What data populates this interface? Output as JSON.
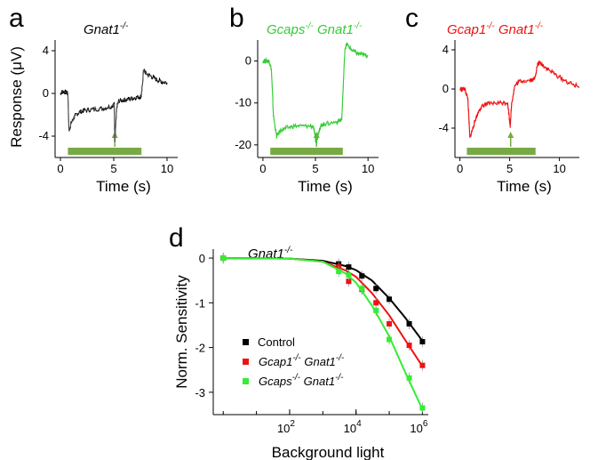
{
  "chart_data": [
    {
      "panel": "a",
      "type": "line",
      "title": "Gnat1-/-",
      "title_base": "Gnat1",
      "title_sup": "-/-",
      "color": "#000000",
      "xlabel": "Time (s)",
      "ylabel": "Response (μV)",
      "xlim": [
        -0.5,
        11
      ],
      "ylim": [
        -6,
        5
      ],
      "xticks": [
        0,
        5,
        10
      ],
      "yticks": [
        4,
        0,
        -4
      ],
      "stimulus_bar": [
        0.7,
        7.6
      ],
      "arrow_x": 5.1,
      "x": [
        0,
        0.2,
        0.5,
        0.7,
        0.8,
        1.0,
        1.3,
        1.7,
        2.2,
        3,
        4,
        4.8,
        5.05,
        5.1,
        5.2,
        5.3,
        5.5,
        6,
        6.5,
        7,
        7.5,
        7.6,
        7.8,
        8,
        8.5,
        9,
        9.5,
        10
      ],
      "y": [
        0,
        0.2,
        0.1,
        0,
        -3.5,
        -2.8,
        -2.2,
        -1.8,
        -1.6,
        -1.5,
        -1.4,
        -1.2,
        -1.0,
        -4.5,
        -2.8,
        -1.2,
        -0.7,
        -0.6,
        -0.5,
        -0.4,
        -0.3,
        -0.2,
        2.2,
        1.9,
        1.6,
        1.3,
        1.1,
        1.0
      ]
    },
    {
      "panel": "b",
      "type": "line",
      "title": "Gcaps-/- Gnat1-/-",
      "title_parts": [
        [
          "Gcaps",
          "-/-"
        ],
        [
          "Gnat1",
          "-/-"
        ]
      ],
      "color": "#33cc33",
      "xlabel": "Time (s)",
      "ylabel": "",
      "xlim": [
        -0.5,
        11
      ],
      "ylim": [
        -23,
        5
      ],
      "xticks": [
        0,
        5,
        10
      ],
      "yticks": [
        0,
        -10,
        -20
      ],
      "stimulus_bar": [
        0.7,
        7.6
      ],
      "arrow_x": 5.1,
      "x": [
        0,
        0.3,
        0.6,
        0.8,
        1.0,
        1.3,
        1.7,
        2.2,
        3,
        4,
        4.8,
        5.05,
        5.2,
        5.4,
        5.6,
        6,
        7,
        7.5,
        7.8,
        8,
        8.5,
        9,
        9.5,
        10
      ],
      "y": [
        0,
        0,
        0,
        -2,
        -13,
        -18,
        -16.5,
        -16,
        -15.5,
        -15.5,
        -15.5,
        -19.5,
        -18,
        -16,
        -15.2,
        -15,
        -14.5,
        -14,
        3,
        4,
        2.5,
        1.8,
        1.5,
        1.2
      ]
    },
    {
      "panel": "c",
      "type": "line",
      "title": "Gcap1-/- Gnat1-/-",
      "title_parts": [
        [
          "Gcap1",
          "-/-"
        ],
        [
          "Gnat1",
          "-/-"
        ]
      ],
      "color": "#ee1111",
      "xlabel": "Time (s)",
      "ylabel": "",
      "xlim": [
        -0.5,
        12
      ],
      "ylim": [
        -7,
        5
      ],
      "xticks": [
        0,
        5,
        10
      ],
      "yticks": [
        4,
        0,
        -4
      ],
      "stimulus_bar": [
        0.7,
        7.6
      ],
      "arrow_x": 5.1,
      "x": [
        0,
        0.5,
        0.8,
        1.0,
        1.3,
        1.6,
        2.0,
        2.5,
        3,
        4,
        4.8,
        5.05,
        5.2,
        5.5,
        6,
        7,
        7.5,
        7.8,
        8,
        8.5,
        9,
        10,
        11,
        12
      ],
      "y": [
        0,
        0,
        -1,
        -5,
        -4,
        -3,
        -2,
        -1.6,
        -1.5,
        -1.4,
        -1.4,
        -3.8,
        -1.5,
        0.3,
        0.8,
        0.9,
        1.0,
        2.5,
        2.7,
        2.3,
        1.9,
        1.2,
        0.6,
        0.2
      ]
    },
    {
      "panel": "d",
      "type": "scatter",
      "title": "Gnat1-/-",
      "title_base": "Gnat1",
      "title_sup": "-/-",
      "xlabel": "Background light",
      "ylabel": "Norm. Sensitivity",
      "xscale": "log",
      "xlim": [
        0.5,
        1500000
      ],
      "ylim": [
        -3.5,
        0.2
      ],
      "xticks_labeled": [
        {
          "value": 100,
          "base": "10",
          "exp": "2"
        },
        {
          "value": 10000,
          "base": "10",
          "exp": "4"
        },
        {
          "value": 1000000,
          "base": "10",
          "exp": "6"
        }
      ],
      "yticks": [
        0,
        -1,
        -2,
        -3
      ],
      "ytick_labels": [
        "0",
        "-1",
        "-2",
        "-3"
      ],
      "legend_position": "bottom-left",
      "series": [
        {
          "name": "Control",
          "color": "#000000",
          "x": [
            1,
            3000,
            6000,
            15000,
            40000,
            100000,
            400000,
            1000000
          ],
          "y": [
            0,
            -0.13,
            -0.2,
            -0.4,
            -0.68,
            -0.92,
            -1.47,
            -1.87
          ],
          "fit": [
            [
              1,
              0
            ],
            [
              100,
              -0.01
            ],
            [
              1000,
              -0.06
            ],
            [
              5000,
              -0.18
            ],
            [
              10000,
              -0.27
            ],
            [
              30000,
              -0.5
            ],
            [
              100000,
              -0.9
            ],
            [
              300000,
              -1.33
            ],
            [
              1000000,
              -1.85
            ]
          ]
        },
        {
          "name_parts": [
            [
              "Gcap1",
              "-/-"
            ],
            [
              "Gnat1",
              "-/-"
            ]
          ],
          "name": "Gcap1-/- Gnat1-/-",
          "color": "#ee1111",
          "x": [
            1,
            3000,
            6000,
            15000,
            40000,
            100000,
            400000,
            1000000
          ],
          "y": [
            0,
            -0.2,
            -0.52,
            -0.7,
            -1.0,
            -1.47,
            -1.95,
            -2.4
          ],
          "fit": [
            [
              1,
              0
            ],
            [
              100,
              -0.01
            ],
            [
              1000,
              -0.08
            ],
            [
              5000,
              -0.28
            ],
            [
              10000,
              -0.42
            ],
            [
              30000,
              -0.78
            ],
            [
              100000,
              -1.28
            ],
            [
              300000,
              -1.83
            ],
            [
              1000000,
              -2.42
            ]
          ]
        },
        {
          "name_parts": [
            [
              "Gcaps",
              "-/-"
            ],
            [
              "Gnat1",
              "-/-"
            ]
          ],
          "name": "Gcaps-/- Gnat1-/-",
          "color": "#33ee33",
          "x": [
            1,
            3000,
            6000,
            15000,
            40000,
            100000,
            400000,
            1000000
          ],
          "y": [
            0,
            -0.3,
            -0.38,
            -0.68,
            -1.17,
            -1.82,
            -2.68,
            -3.35
          ],
          "fit": [
            [
              1,
              0
            ],
            [
              100,
              -0.01
            ],
            [
              1000,
              -0.08
            ],
            [
              5000,
              -0.35
            ],
            [
              10000,
              -0.55
            ],
            [
              30000,
              -1.06
            ],
            [
              100000,
              -1.75
            ],
            [
              300000,
              -2.55
            ],
            [
              1000000,
              -3.38
            ]
          ]
        }
      ]
    }
  ]
}
